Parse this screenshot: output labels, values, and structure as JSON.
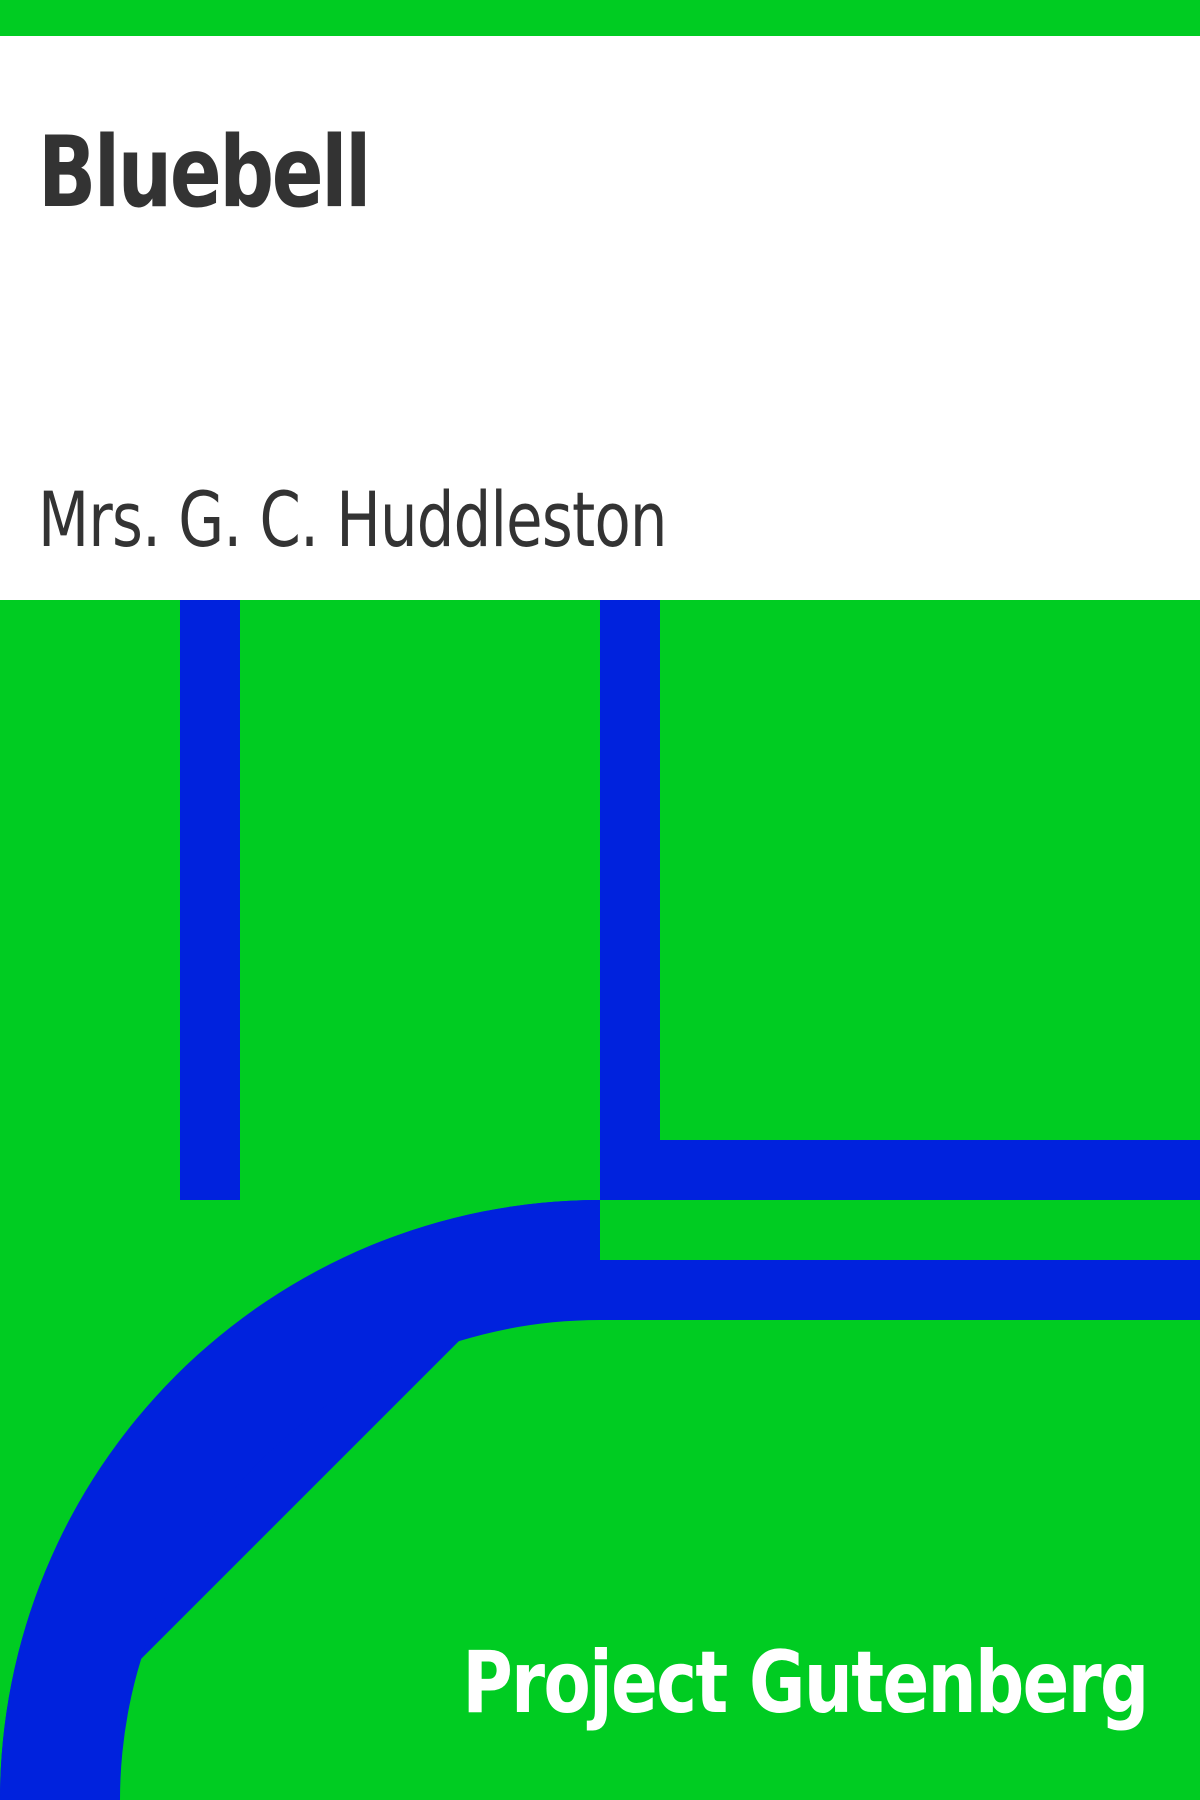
{
  "cover": {
    "title": "Bluebell",
    "author": "Mrs. G. C. Huddleston",
    "publisher": "Project Gutenberg"
  },
  "colors": {
    "background_green": "#00cc22",
    "pattern_blue": "#0022dd",
    "panel_white": "#ffffff",
    "text_dark": "#333333",
    "publisher_text": "#ffffff"
  }
}
